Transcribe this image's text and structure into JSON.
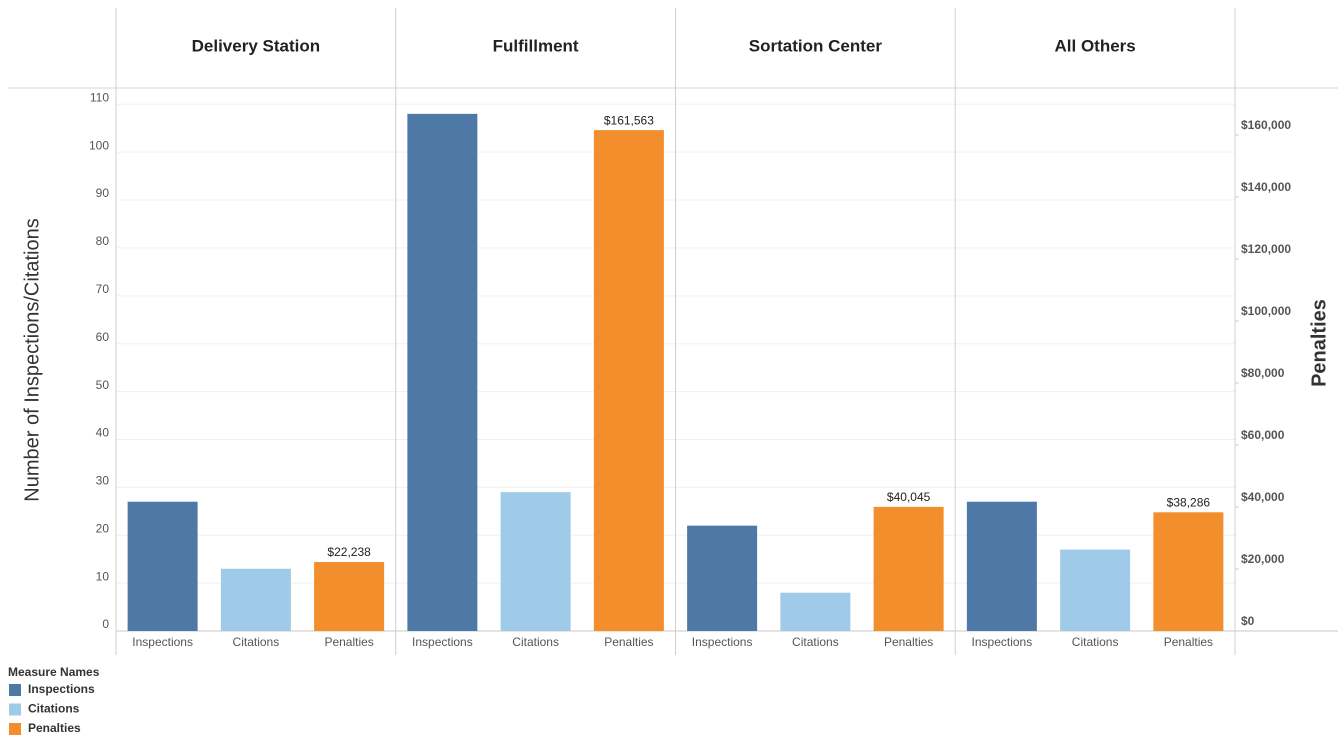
{
  "chart_data": {
    "type": "bar",
    "categories": [
      "Delivery Station",
      "Fulfillment",
      "Sortation Center",
      "All Others"
    ],
    "series": [
      {
        "name": "Inspections",
        "color": "#4e79a7",
        "values": [
          27,
          108,
          22,
          27
        ]
      },
      {
        "name": "Citations",
        "color": "#a0cbe8",
        "values": [
          13,
          29,
          8,
          17
        ]
      },
      {
        "name": "Penalties",
        "color": "#f28e2b",
        "axis": "y2",
        "values": [
          22238,
          161563,
          40045,
          38286
        ],
        "value_labels": [
          "$22,238",
          "$161,563",
          "$40,045",
          "$38,286"
        ]
      }
    ],
    "y_label": "Number of Inspections/Citations",
    "y2_label": "Penalties",
    "legend_title": "Measure Names",
    "ylim": [
      0,
      113.4
    ],
    "yticks": [
      0,
      10,
      20,
      30,
      40,
      50,
      60,
      70,
      80,
      90,
      100,
      110
    ],
    "y2lim": [
      0,
      175160
    ],
    "y2ticks": [
      {
        "value": 0,
        "label": "$0"
      },
      {
        "value": 20000,
        "label": "$20,000"
      },
      {
        "value": 40000,
        "label": "$40,000"
      },
      {
        "value": 60000,
        "label": "$60,000"
      },
      {
        "value": 80000,
        "label": "$80,000"
      },
      {
        "value": 100000,
        "label": "$100,000"
      },
      {
        "value": 120000,
        "label": "$120,000"
      },
      {
        "value": 140000,
        "label": "$140,000"
      },
      {
        "value": 160000,
        "label": "$160,000"
      }
    ],
    "grid": true,
    "legend": "bottom-left"
  }
}
